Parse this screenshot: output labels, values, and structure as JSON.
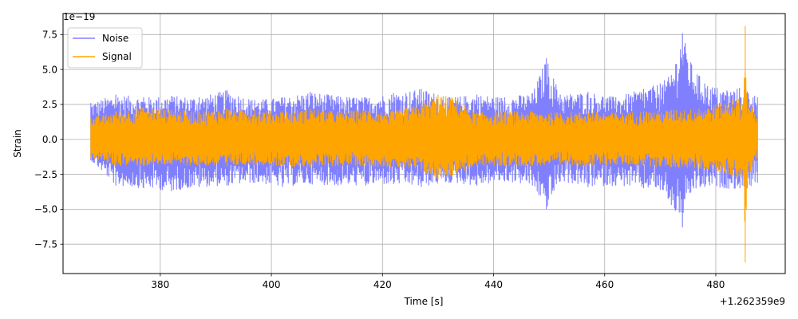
{
  "chart_data": {
    "type": "line",
    "xlabel": "Time [s]",
    "ylabel": "Strain",
    "x_offset_label": "+1.262359e9",
    "y_scale_label": "1e−19",
    "xlim": [
      362.5,
      492.5
    ],
    "ylim": [
      -9.6,
      9.0
    ],
    "x_ticks": [
      380,
      400,
      420,
      440,
      460,
      480
    ],
    "x_tick_labels": [
      "380",
      "400",
      "420",
      "440",
      "460",
      "480"
    ],
    "y_ticks": [
      -7.5,
      -5.0,
      -2.5,
      0.0,
      2.5,
      5.0,
      7.5
    ],
    "y_tick_labels": [
      "−7.5",
      "−5.0",
      "−2.5",
      "0.0",
      "2.5",
      "5.0",
      "7.5"
    ],
    "grid": true,
    "legend_position": "upper-left",
    "series": [
      {
        "name": "Noise",
        "color": "#8080ff",
        "values_note": "envelope of dense strain time series",
        "x": [
          367.5,
          372,
          377,
          382,
          387,
          392,
          397,
          402,
          407,
          412,
          417,
          422,
          427,
          432,
          437,
          442,
          447,
          449.5,
          452,
          457,
          462,
          467,
          470,
          472,
          474,
          475.5,
          478,
          482,
          485.3,
          487.5
        ],
        "upper": [
          2.6,
          3.2,
          3.0,
          3.1,
          3.0,
          3.5,
          2.8,
          3.0,
          3.4,
          3.1,
          3.0,
          3.3,
          3.6,
          3.0,
          3.2,
          3.0,
          3.3,
          5.8,
          3.2,
          3.4,
          3.0,
          3.6,
          4.0,
          4.6,
          7.6,
          5.5,
          4.0,
          3.5,
          3.8,
          3.0
        ],
        "lower": [
          -1.5,
          -3.3,
          -3.5,
          -3.7,
          -3.4,
          -3.3,
          -3.1,
          -3.4,
          -3.2,
          -3.3,
          -3.3,
          -3.2,
          -3.4,
          -3.1,
          -3.3,
          -3.0,
          -3.3,
          -5.0,
          -3.0,
          -3.4,
          -3.3,
          -3.5,
          -3.6,
          -4.7,
          -6.3,
          -3.8,
          -3.4,
          -3.5,
          -3.6,
          -3.1
        ]
      },
      {
        "name": "Signal",
        "color": "#ffa500",
        "values_note": "envelope of dense strain time series with spike near 485.3",
        "x": [
          367.5,
          372,
          377,
          382,
          387,
          392,
          397,
          402,
          407,
          412,
          417,
          422,
          427,
          430,
          432.5,
          437,
          442,
          447,
          452,
          457,
          462,
          467,
          472,
          477,
          480,
          483,
          485.0,
          485.3,
          485.6,
          487.5
        ],
        "upper": [
          1.5,
          2.0,
          2.3,
          2.1,
          2.0,
          2.2,
          2.1,
          2.0,
          2.2,
          2.0,
          2.1,
          2.0,
          2.5,
          3.2,
          3.0,
          1.9,
          2.0,
          2.0,
          1.9,
          2.0,
          1.9,
          2.0,
          2.1,
          2.2,
          2.5,
          2.8,
          3.0,
          8.1,
          3.2,
          1.5
        ],
        "lower": [
          -1.3,
          -1.9,
          -1.9,
          -1.8,
          -1.9,
          -1.9,
          -1.8,
          -1.9,
          -2.0,
          -1.9,
          -1.9,
          -2.0,
          -2.3,
          -2.9,
          -2.6,
          -1.9,
          -1.9,
          -1.9,
          -1.8,
          -1.9,
          -1.8,
          -1.9,
          -2.0,
          -2.1,
          -2.3,
          -2.6,
          -2.9,
          -8.8,
          -3.0,
          -1.3
        ]
      }
    ]
  }
}
